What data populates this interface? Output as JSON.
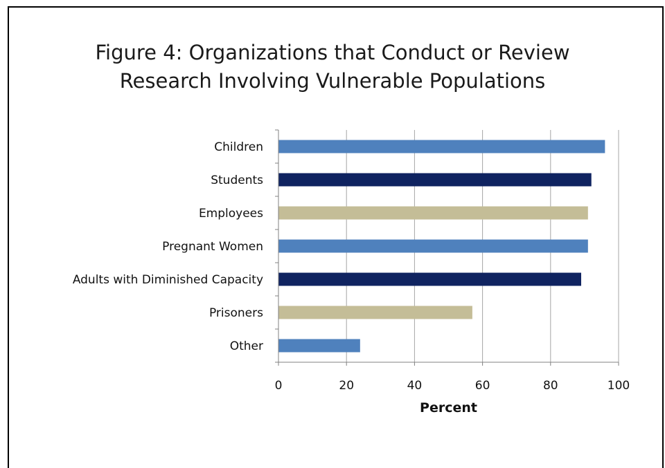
{
  "chart_data": {
    "type": "bar",
    "orientation": "horizontal",
    "title_lines": [
      "Figure 4: Organizations that Conduct or Review",
      "Research Involving Vulnerable Populations"
    ],
    "categories": [
      "Children",
      "Students",
      "Employees",
      "Pregnant Women",
      "Adults with Diminished Capacity",
      "Prisoners",
      "Other"
    ],
    "values": [
      96,
      92,
      91,
      91,
      89,
      57,
      24
    ],
    "bar_colors": [
      "#4f81bd",
      "#0f2360",
      "#c4bd97",
      "#4f81bd",
      "#0f2360",
      "#c4bd97",
      "#4f81bd"
    ],
    "xlabel": "Percent",
    "xlim": [
      0,
      100
    ],
    "xticks": [
      0,
      20,
      40,
      60,
      80,
      100
    ],
    "grid": "vertical",
    "legend": "none"
  }
}
